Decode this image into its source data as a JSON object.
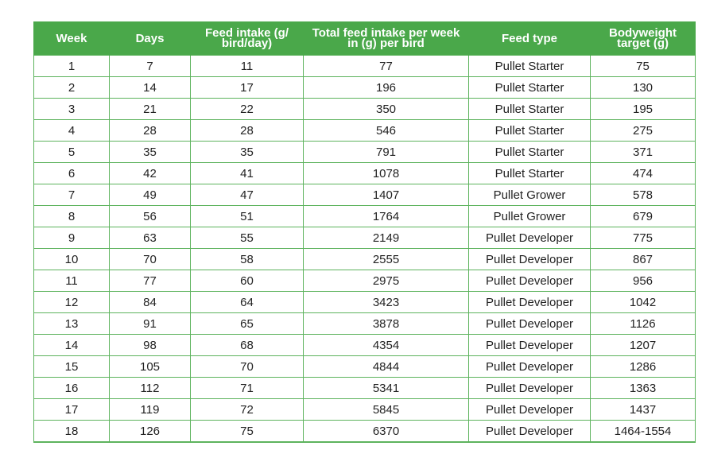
{
  "table": {
    "headers": [
      "Week",
      "Days",
      "Feed intake (g/ bird/day)",
      "Total feed intake per week in (g) per bird",
      "Feed type",
      "Bodyweight target (g)"
    ],
    "rows": [
      [
        "1",
        "7",
        "11",
        "77",
        "Pullet Starter",
        "75"
      ],
      [
        "2",
        "14",
        "17",
        "196",
        "Pullet Starter",
        "130"
      ],
      [
        "3",
        "21",
        "22",
        "350",
        "Pullet Starter",
        "195"
      ],
      [
        "4",
        "28",
        "28",
        "546",
        "Pullet Starter",
        "275"
      ],
      [
        "5",
        "35",
        "35",
        "791",
        "Pullet Starter",
        "371"
      ],
      [
        "6",
        "42",
        "41",
        "1078",
        "Pullet Starter",
        "474"
      ],
      [
        "7",
        "49",
        "47",
        "1407",
        "Pullet Grower",
        "578"
      ],
      [
        "8",
        "56",
        "51",
        "1764",
        "Pullet Grower",
        "679"
      ],
      [
        "9",
        "63",
        "55",
        "2149",
        "Pullet Developer",
        "775"
      ],
      [
        "10",
        "70",
        "58",
        "2555",
        "Pullet Developer",
        "867"
      ],
      [
        "11",
        "77",
        "60",
        "2975",
        "Pullet Developer",
        "956"
      ],
      [
        "12",
        "84",
        "64",
        "3423",
        "Pullet Developer",
        "1042"
      ],
      [
        "13",
        "91",
        "65",
        "3878",
        "Pullet Developer",
        "1126"
      ],
      [
        "14",
        "98",
        "68",
        "4354",
        "Pullet Developer",
        "1207"
      ],
      [
        "15",
        "105",
        "70",
        "4844",
        "Pullet Developer",
        "1286"
      ],
      [
        "16",
        "112",
        "71",
        "5341",
        "Pullet Developer",
        "1363"
      ],
      [
        "17",
        "119",
        "72",
        "5845",
        "Pullet Developer",
        "1437"
      ],
      [
        "18",
        "126",
        "75",
        "6370",
        "Pullet Developer",
        "1464-1554"
      ]
    ]
  },
  "colors": {
    "header_bg": "#4aa84a",
    "grid_line": "#5db35d"
  }
}
